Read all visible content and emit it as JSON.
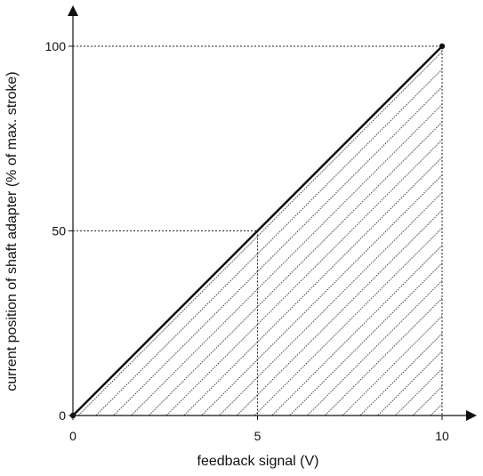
{
  "chart_data": {
    "type": "line",
    "title": "",
    "xlabel": "feedback signal (V)",
    "ylabel": "current position of shaft adapter (% of max. stroke)",
    "xlim": [
      0,
      10
    ],
    "ylim": [
      0,
      100
    ],
    "x_ticks": [
      {
        "value": 0,
        "label": "0"
      },
      {
        "value": 5,
        "label": "5"
      },
      {
        "value": 10,
        "label": "10"
      }
    ],
    "y_ticks": [
      {
        "value": 0,
        "label": "0"
      },
      {
        "value": 50,
        "label": "50"
      },
      {
        "value": 100,
        "label": "100"
      }
    ],
    "series": [
      {
        "x": [
          0,
          10
        ],
        "y": [
          0,
          100
        ]
      }
    ],
    "endpoints": [
      {
        "x": 0,
        "y": 0
      },
      {
        "x": 10,
        "y": 100
      }
    ],
    "reference_points": [
      {
        "x": 5,
        "y": 50
      },
      {
        "x": 10,
        "y": 100
      }
    ],
    "fill_under_line": true,
    "fill_style": "diagonal-hatch",
    "grid": false,
    "colors": {
      "line": "#111111",
      "axis": "#111111",
      "guide": "#222222",
      "hatch": "#333333",
      "background": "#ffffff"
    }
  }
}
